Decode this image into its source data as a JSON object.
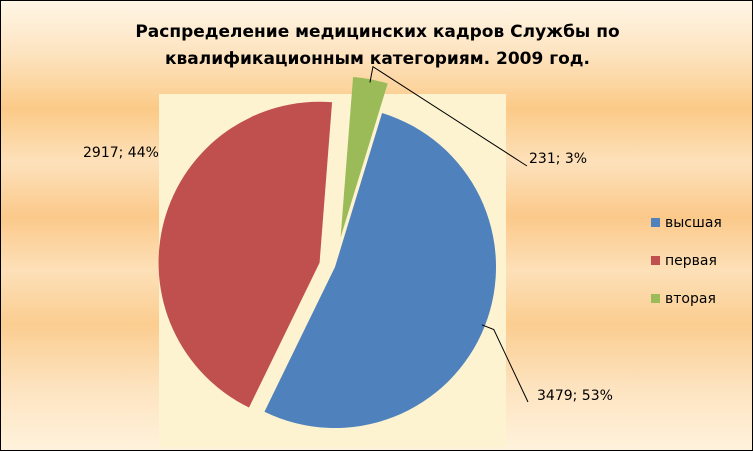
{
  "chart_data": {
    "type": "pie",
    "title_line1": "Распределение медицинских кадров  Службы по",
    "title_line2": "квалификационным категориям.  2009 год.",
    "slices": [
      {
        "name": "высшая",
        "value": 3479,
        "percent": 53,
        "label": "3479; 53%",
        "color": "#4f81bd"
      },
      {
        "name": "первая",
        "value": 2917,
        "percent": 44,
        "label": "2917; 44%",
        "color": "#c0504d"
      },
      {
        "name": "вторая",
        "value": 231,
        "percent": 3,
        "label": "231; 3%",
        "color": "#9bbb59"
      }
    ],
    "legend_position": "right",
    "plot_area_color": "#fdf3d0"
  }
}
